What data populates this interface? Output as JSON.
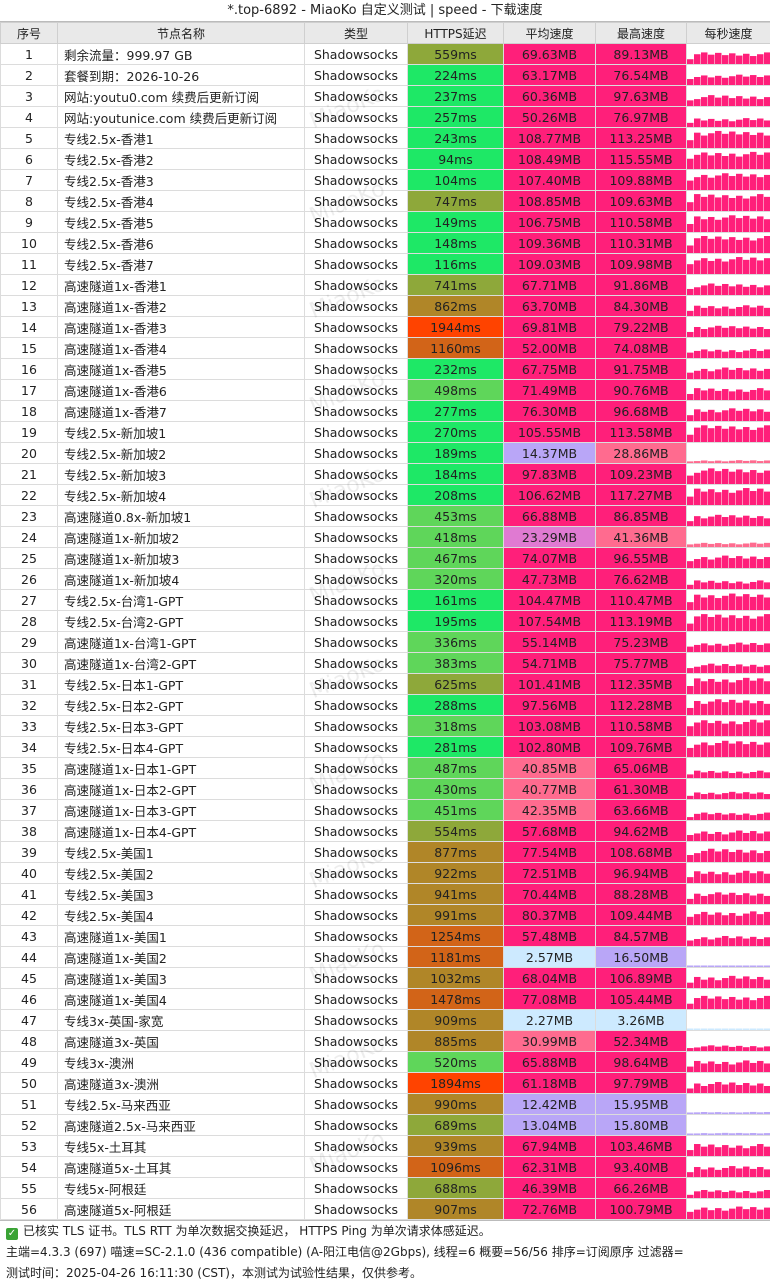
{
  "window": {
    "title": "*.top-6892 - MiaoKo 自定义测试 | speed - 下载速度"
  },
  "table": {
    "headers": [
      "序号",
      "节点名称",
      "类型",
      "HTTPS延迟",
      "平均速度",
      "最高速度",
      "每秒速度"
    ],
    "rows": [
      {
        "idx": "1",
        "name": "剩余流量：999.97 GB",
        "type": "Shadowsocks",
        "latency": "559ms",
        "avg": "69.63MB",
        "max": "89.13MB"
      },
      {
        "idx": "2",
        "name": "套餐到期：2026-10-26",
        "type": "Shadowsocks",
        "latency": "224ms",
        "avg": "63.17MB",
        "max": "76.54MB"
      },
      {
        "idx": "3",
        "name": "网站:youtu0.com 续费后更新订阅",
        "type": "Shadowsocks",
        "latency": "237ms",
        "avg": "60.36MB",
        "max": "97.63MB"
      },
      {
        "idx": "4",
        "name": "网站:youtunice.com 续费后更新订阅",
        "type": "Shadowsocks",
        "latency": "257ms",
        "avg": "50.26MB",
        "max": "76.97MB"
      },
      {
        "idx": "5",
        "name": "专线2.5x-香港1",
        "type": "Shadowsocks",
        "latency": "243ms",
        "avg": "108.77MB",
        "max": "113.25MB"
      },
      {
        "idx": "6",
        "name": "专线2.5x-香港2",
        "type": "Shadowsocks",
        "latency": "94ms",
        "avg": "108.49MB",
        "max": "115.55MB"
      },
      {
        "idx": "7",
        "name": "专线2.5x-香港3",
        "type": "Shadowsocks",
        "latency": "104ms",
        "avg": "107.40MB",
        "max": "109.88MB"
      },
      {
        "idx": "8",
        "name": "专线2.5x-香港4",
        "type": "Shadowsocks",
        "latency": "747ms",
        "avg": "108.85MB",
        "max": "109.63MB"
      },
      {
        "idx": "9",
        "name": "专线2.5x-香港5",
        "type": "Shadowsocks",
        "latency": "149ms",
        "avg": "106.75MB",
        "max": "110.58MB"
      },
      {
        "idx": "10",
        "name": "专线2.5x-香港6",
        "type": "Shadowsocks",
        "latency": "148ms",
        "avg": "109.36MB",
        "max": "110.31MB"
      },
      {
        "idx": "11",
        "name": "专线2.5x-香港7",
        "type": "Shadowsocks",
        "latency": "116ms",
        "avg": "109.03MB",
        "max": "109.98MB"
      },
      {
        "idx": "12",
        "name": "高速隧道1x-香港1",
        "type": "Shadowsocks",
        "latency": "741ms",
        "avg": "67.71MB",
        "max": "91.86MB"
      },
      {
        "idx": "13",
        "name": "高速隧道1x-香港2",
        "type": "Shadowsocks",
        "latency": "862ms",
        "avg": "63.70MB",
        "max": "84.30MB"
      },
      {
        "idx": "14",
        "name": "高速隧道1x-香港3",
        "type": "Shadowsocks",
        "latency": "1944ms",
        "avg": "69.81MB",
        "max": "79.22MB"
      },
      {
        "idx": "15",
        "name": "高速隧道1x-香港4",
        "type": "Shadowsocks",
        "latency": "1160ms",
        "avg": "52.00MB",
        "max": "74.08MB"
      },
      {
        "idx": "16",
        "name": "高速隧道1x-香港5",
        "type": "Shadowsocks",
        "latency": "232ms",
        "avg": "67.75MB",
        "max": "91.75MB"
      },
      {
        "idx": "17",
        "name": "高速隧道1x-香港6",
        "type": "Shadowsocks",
        "latency": "498ms",
        "avg": "71.49MB",
        "max": "90.76MB"
      },
      {
        "idx": "18",
        "name": "高速隧道1x-香港7",
        "type": "Shadowsocks",
        "latency": "277ms",
        "avg": "76.30MB",
        "max": "96.68MB"
      },
      {
        "idx": "19",
        "name": "专线2.5x-新加坡1",
        "type": "Shadowsocks",
        "latency": "270ms",
        "avg": "105.55MB",
        "max": "113.58MB"
      },
      {
        "idx": "20",
        "name": "专线2.5x-新加坡2",
        "type": "Shadowsocks",
        "latency": "189ms",
        "avg": "14.37MB",
        "max": "28.86MB"
      },
      {
        "idx": "21",
        "name": "专线2.5x-新加坡3",
        "type": "Shadowsocks",
        "latency": "184ms",
        "avg": "97.83MB",
        "max": "109.23MB"
      },
      {
        "idx": "22",
        "name": "专线2.5x-新加坡4",
        "type": "Shadowsocks",
        "latency": "208ms",
        "avg": "106.62MB",
        "max": "117.27MB"
      },
      {
        "idx": "23",
        "name": "高速隧道0.8x-新加坡1",
        "type": "Shadowsocks",
        "latency": "453ms",
        "avg": "66.88MB",
        "max": "86.85MB"
      },
      {
        "idx": "24",
        "name": "高速隧道1x-新加坡2",
        "type": "Shadowsocks",
        "latency": "418ms",
        "avg": "23.29MB",
        "max": "41.36MB"
      },
      {
        "idx": "25",
        "name": "高速隧道1x-新加坡3",
        "type": "Shadowsocks",
        "latency": "467ms",
        "avg": "74.07MB",
        "max": "96.55MB"
      },
      {
        "idx": "26",
        "name": "高速隧道1x-新加坡4",
        "type": "Shadowsocks",
        "latency": "320ms",
        "avg": "47.73MB",
        "max": "76.62MB"
      },
      {
        "idx": "27",
        "name": "专线2.5x-台湾1-GPT",
        "type": "Shadowsocks",
        "latency": "161ms",
        "avg": "104.47MB",
        "max": "110.47MB"
      },
      {
        "idx": "28",
        "name": "专线2.5x-台湾2-GPT",
        "type": "Shadowsocks",
        "latency": "195ms",
        "avg": "107.54MB",
        "max": "113.19MB"
      },
      {
        "idx": "29",
        "name": "高速隧道1x-台湾1-GPT",
        "type": "Shadowsocks",
        "latency": "336ms",
        "avg": "55.14MB",
        "max": "75.23MB"
      },
      {
        "idx": "30",
        "name": "高速隧道1x-台湾2-GPT",
        "type": "Shadowsocks",
        "latency": "383ms",
        "avg": "54.71MB",
        "max": "75.77MB"
      },
      {
        "idx": "31",
        "name": "专线2.5x-日本1-GPT",
        "type": "Shadowsocks",
        "latency": "625ms",
        "avg": "101.41MB",
        "max": "112.35MB"
      },
      {
        "idx": "32",
        "name": "专线2.5x-日本2-GPT",
        "type": "Shadowsocks",
        "latency": "288ms",
        "avg": "97.56MB",
        "max": "112.28MB"
      },
      {
        "idx": "33",
        "name": "专线2.5x-日本3-GPT",
        "type": "Shadowsocks",
        "latency": "318ms",
        "avg": "103.08MB",
        "max": "110.58MB"
      },
      {
        "idx": "34",
        "name": "专线2.5x-日本4-GPT",
        "type": "Shadowsocks",
        "latency": "281ms",
        "avg": "102.80MB",
        "max": "109.76MB"
      },
      {
        "idx": "35",
        "name": "高速隧道1x-日本1-GPT",
        "type": "Shadowsocks",
        "latency": "487ms",
        "avg": "40.85MB",
        "max": "65.06MB"
      },
      {
        "idx": "36",
        "name": "高速隧道1x-日本2-GPT",
        "type": "Shadowsocks",
        "latency": "430ms",
        "avg": "40.77MB",
        "max": "61.30MB"
      },
      {
        "idx": "37",
        "name": "高速隧道1x-日本3-GPT",
        "type": "Shadowsocks",
        "latency": "451ms",
        "avg": "42.35MB",
        "max": "63.66MB"
      },
      {
        "idx": "38",
        "name": "高速隧道1x-日本4-GPT",
        "type": "Shadowsocks",
        "latency": "554ms",
        "avg": "57.68MB",
        "max": "94.62MB"
      },
      {
        "idx": "39",
        "name": "专线2.5x-美国1",
        "type": "Shadowsocks",
        "latency": "877ms",
        "avg": "77.54MB",
        "max": "108.68MB"
      },
      {
        "idx": "40",
        "name": "专线2.5x-美国2",
        "type": "Shadowsocks",
        "latency": "922ms",
        "avg": "72.51MB",
        "max": "96.94MB"
      },
      {
        "idx": "41",
        "name": "专线2.5x-美国3",
        "type": "Shadowsocks",
        "latency": "941ms",
        "avg": "70.44MB",
        "max": "88.28MB"
      },
      {
        "idx": "42",
        "name": "专线2.5x-美国4",
        "type": "Shadowsocks",
        "latency": "991ms",
        "avg": "80.37MB",
        "max": "109.44MB"
      },
      {
        "idx": "43",
        "name": "高速隧道1x-美国1",
        "type": "Shadowsocks",
        "latency": "1254ms",
        "avg": "57.48MB",
        "max": "84.57MB"
      },
      {
        "idx": "44",
        "name": "高速隧道1x-美国2",
        "type": "Shadowsocks",
        "latency": "1181ms",
        "avg": "2.57MB",
        "max": "16.50MB"
      },
      {
        "idx": "45",
        "name": "高速隧道1x-美国3",
        "type": "Shadowsocks",
        "latency": "1032ms",
        "avg": "68.04MB",
        "max": "106.89MB"
      },
      {
        "idx": "46",
        "name": "高速隧道1x-美国4",
        "type": "Shadowsocks",
        "latency": "1478ms",
        "avg": "77.08MB",
        "max": "105.44MB"
      },
      {
        "idx": "47",
        "name": "专线3x-英国-家宽",
        "type": "Shadowsocks",
        "latency": "909ms",
        "avg": "2.27MB",
        "max": "3.26MB"
      },
      {
        "idx": "48",
        "name": "高速隧道3x-英国",
        "type": "Shadowsocks",
        "latency": "885ms",
        "avg": "30.99MB",
        "max": "52.34MB"
      },
      {
        "idx": "49",
        "name": "专线3x-澳洲",
        "type": "Shadowsocks",
        "latency": "520ms",
        "avg": "65.88MB",
        "max": "98.64MB"
      },
      {
        "idx": "50",
        "name": "高速隧道3x-澳洲",
        "type": "Shadowsocks",
        "latency": "1894ms",
        "avg": "61.18MB",
        "max": "97.79MB"
      },
      {
        "idx": "51",
        "name": "专线2.5x-马来西亚",
        "type": "Shadowsocks",
        "latency": "990ms",
        "avg": "12.42MB",
        "max": "15.95MB"
      },
      {
        "idx": "52",
        "name": "高速隧道2.5x-马来西亚",
        "type": "Shadowsocks",
        "latency": "689ms",
        "avg": "13.04MB",
        "max": "15.80MB"
      },
      {
        "idx": "53",
        "name": "专线5x-土耳其",
        "type": "Shadowsocks",
        "latency": "939ms",
        "avg": "67.94MB",
        "max": "103.46MB"
      },
      {
        "idx": "54",
        "name": "高速隧道5x-土耳其",
        "type": "Shadowsocks",
        "latency": "1096ms",
        "avg": "62.31MB",
        "max": "93.40MB"
      },
      {
        "idx": "55",
        "name": "专线5x-阿根廷",
        "type": "Shadowsocks",
        "latency": "688ms",
        "avg": "46.39MB",
        "max": "66.26MB"
      },
      {
        "idx": "56",
        "name": "高速隧道5x-阿根廷",
        "type": "Shadowsocks",
        "latency": "907ms",
        "avg": "72.76MB",
        "max": "100.79MB"
      }
    ]
  },
  "watermark": "MiaoKo",
  "footer": {
    "line1": "已核实 TLS 证书。TLS RTT 为单次数据交换延迟， HTTPS Ping 为单次请求体感延迟。",
    "line2": "主端=4.3.3 (697) 喵速=SC-2.1.0 (436 compatible) (A-阳江电信@2Gbps), 线程=6 概要=56/56 排序=订阅原序 过滤器=",
    "line3": "测试时间：2025-04-26 16:11:30 (CST)，本测试为试验性结果，仅供参考。"
  },
  "colors": {
    "lat_green": "#1ee866",
    "lat_lightgreen": "#5fd65a",
    "lat_olive": "#8ea83a",
    "lat_brown": "#b08628",
    "lat_orange": "#d26418",
    "lat_red": "#ff4300",
    "speed_pink": "#ff1f7a",
    "speed_rose": "#ff6b8f",
    "speed_mauve": "#e07ad2",
    "speed_lavender": "#b9a6f7",
    "speed_lightblue": "#cdeaff",
    "check_green": "#3aa335"
  }
}
